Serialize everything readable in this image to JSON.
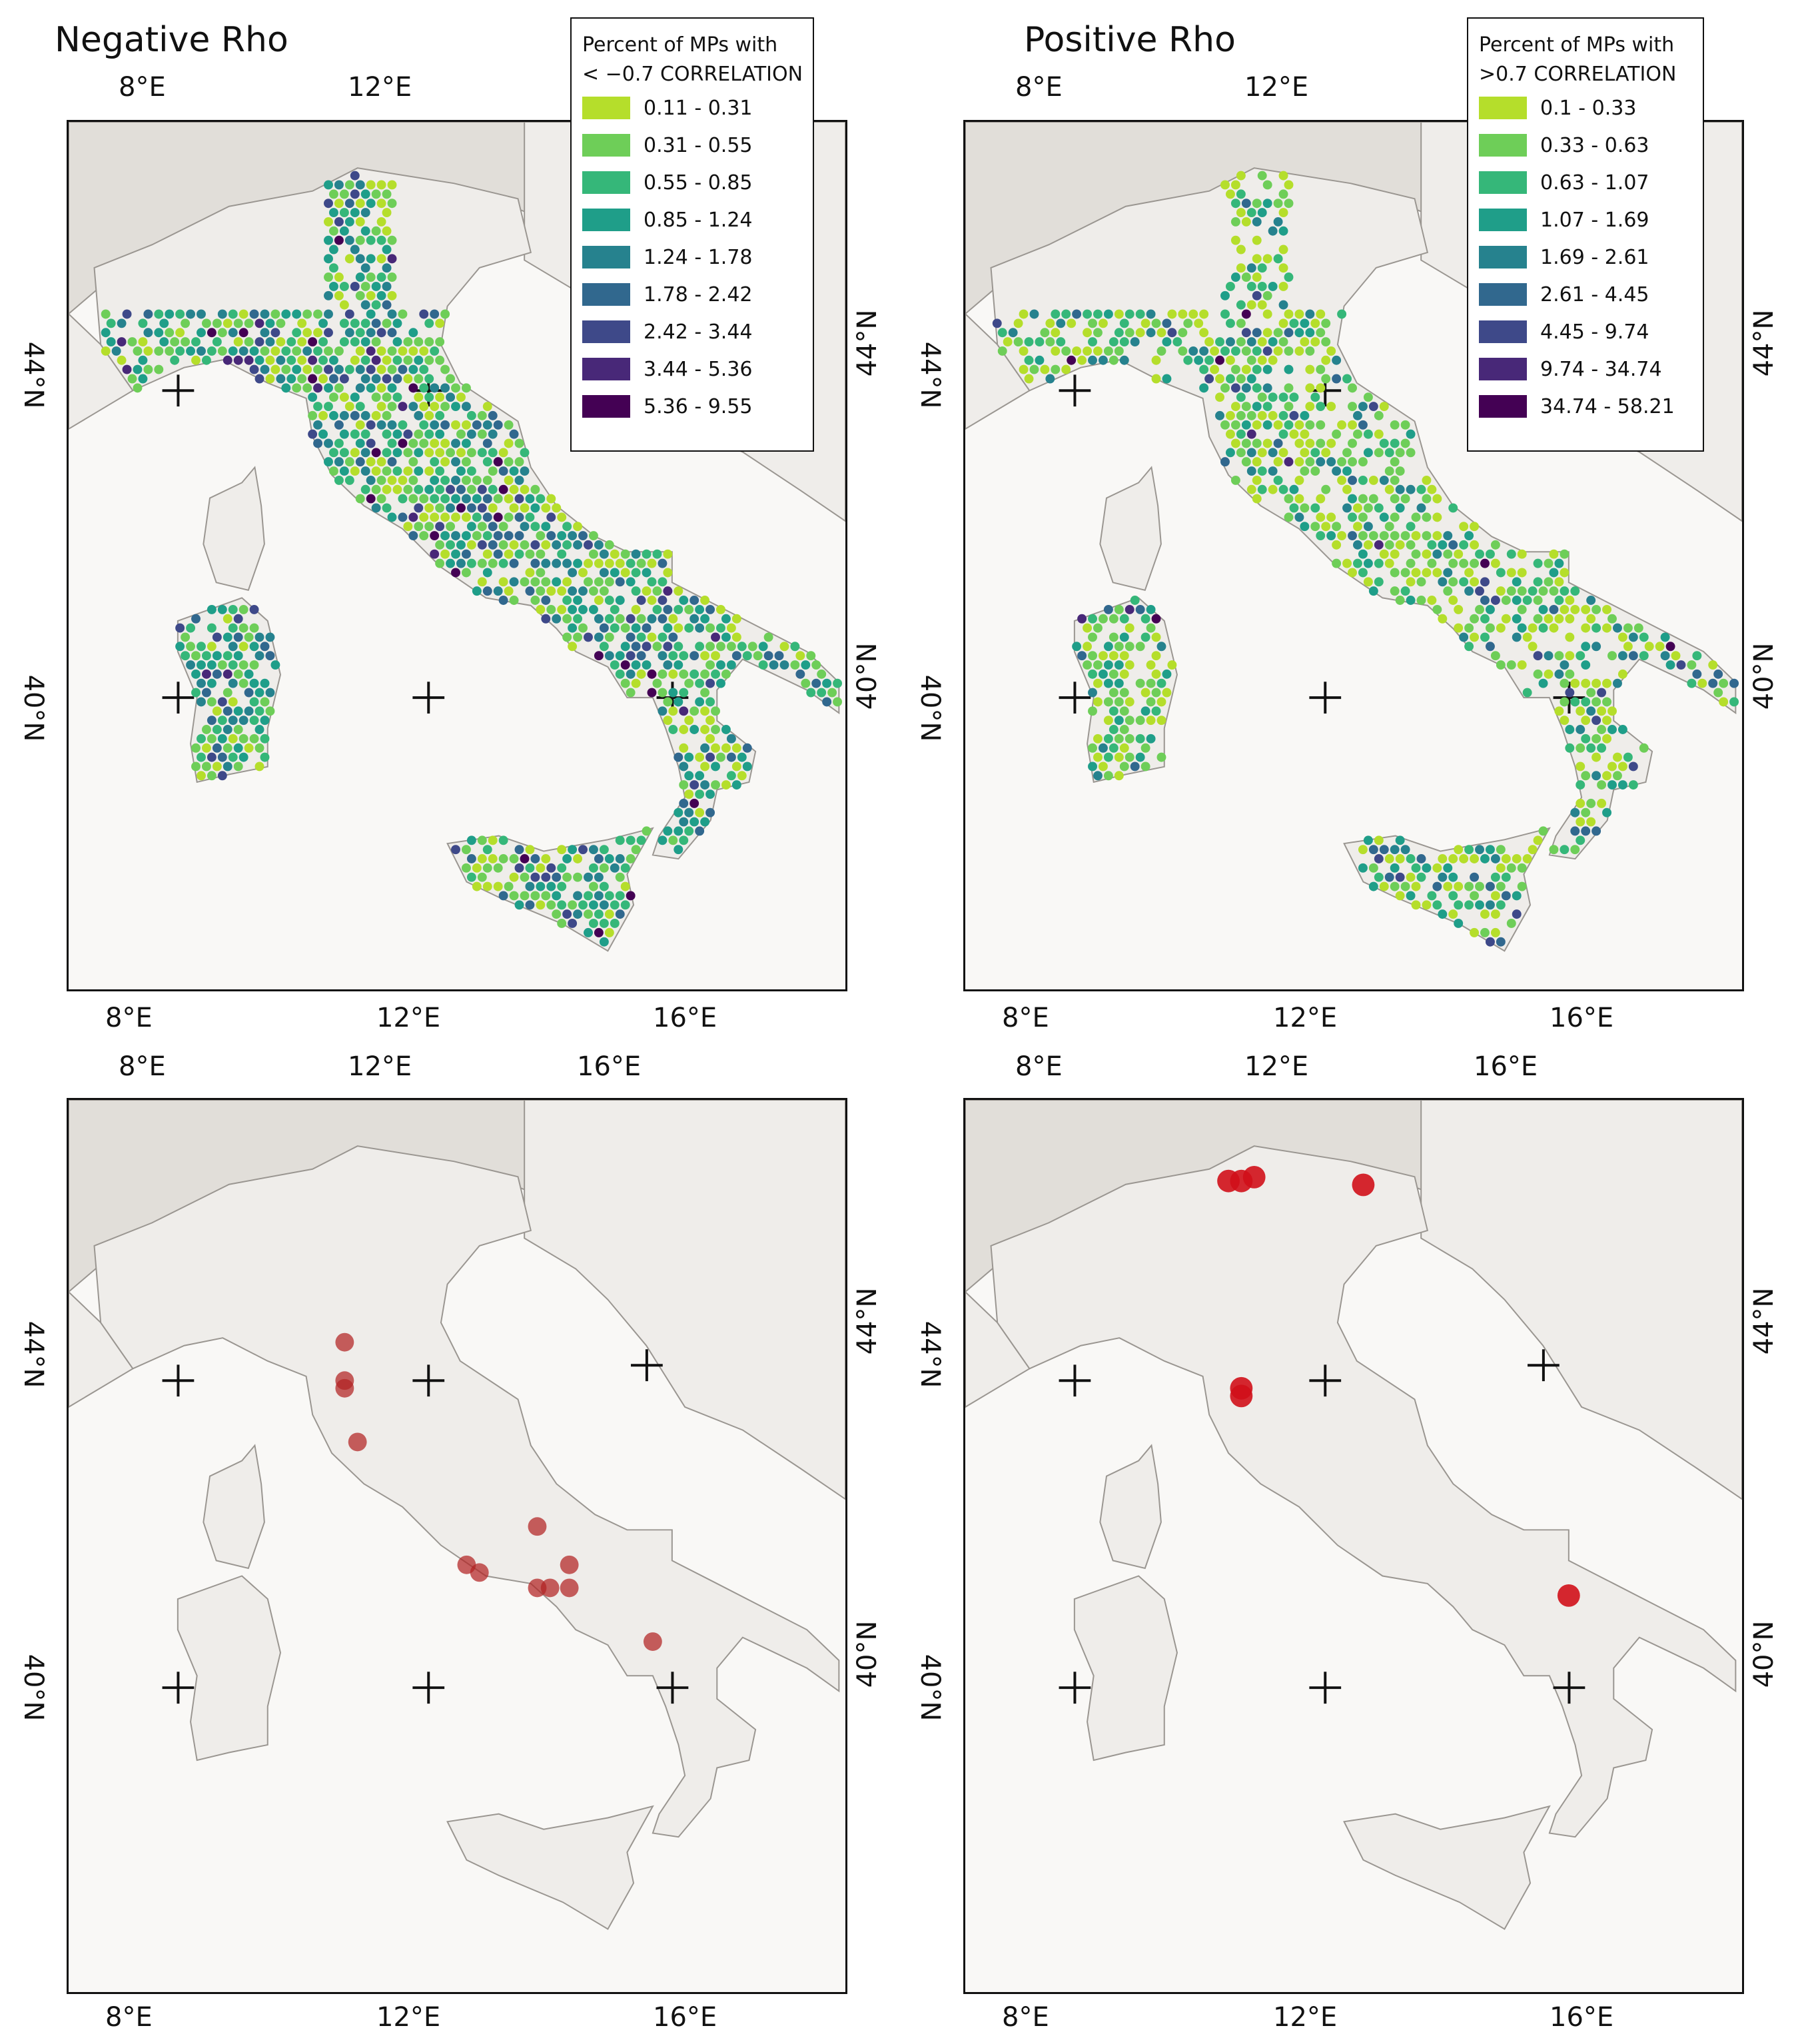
{
  "titles": {
    "negative": "Negative Rho",
    "positive": "Positive Rho"
  },
  "top_ticks": [
    "8°E",
    "12°E",
    "16°E"
  ],
  "bottom_ticks": [
    "8°E",
    "12°E",
    "16°E"
  ],
  "lat_ticks": [
    "44°N",
    "40°N"
  ],
  "legend_negative": {
    "heading1": "Percent of MPs with",
    "heading2": "< −0.7 CORRELATION",
    "classes": [
      {
        "label": "0.11 - 0.31",
        "color": "#b5de2b"
      },
      {
        "label": "0.31 - 0.55",
        "color": "#6ece58"
      },
      {
        "label": "0.55 - 0.85",
        "color": "#35b779"
      },
      {
        "label": "0.85 - 1.24",
        "color": "#1f9e89"
      },
      {
        "label": "1.24 - 1.78",
        "color": "#26828e"
      },
      {
        "label": "1.78 - 2.42",
        "color": "#31688e"
      },
      {
        "label": "2.42 - 3.44",
        "color": "#3e4989"
      },
      {
        "label": "3.44 - 5.36",
        "color": "#482878"
      },
      {
        "label": "5.36 - 9.55",
        "color": "#440154"
      }
    ]
  },
  "legend_positive": {
    "heading1": "Percent of MPs with",
    "heading2": ">0.7 CORRELATION",
    "classes": [
      {
        "label": "0.1 - 0.33",
        "color": "#b5de2b"
      },
      {
        "label": "0.33 - 0.63",
        "color": "#6ece58"
      },
      {
        "label": "0.63 - 1.07",
        "color": "#35b779"
      },
      {
        "label": "1.07 - 1.69",
        "color": "#1f9e89"
      },
      {
        "label": "1.69 - 2.61",
        "color": "#26828e"
      },
      {
        "label": "2.61 - 4.45",
        "color": "#31688e"
      },
      {
        "label": "4.45 - 9.74",
        "color": "#3e4989"
      },
      {
        "label": "9.74 - 34.74",
        "color": "#482878"
      },
      {
        "label": "34.74 - 58.21",
        "color": "#440154"
      }
    ]
  },
  "colors": {
    "sea": "#f9f8f6",
    "land": "#efedea",
    "coast": "#9a9691",
    "point_neg": "#b22222",
    "point_pos": "#d0101a"
  },
  "points_negative": [
    {
      "lon": 10.8,
      "lat": 44.5
    },
    {
      "lon": 10.8,
      "lat": 44.0
    },
    {
      "lon": 10.8,
      "lat": 43.9
    },
    {
      "lon": 11.0,
      "lat": 43.2
    },
    {
      "lon": 12.7,
      "lat": 41.6
    },
    {
      "lon": 12.9,
      "lat": 41.5
    },
    {
      "lon": 13.8,
      "lat": 42.1
    },
    {
      "lon": 14.3,
      "lat": 41.6
    },
    {
      "lon": 14.3,
      "lat": 41.3
    },
    {
      "lon": 13.8,
      "lat": 41.3
    },
    {
      "lon": 14.0,
      "lat": 41.3
    },
    {
      "lon": 15.6,
      "lat": 40.6
    }
  ],
  "points_positive": [
    {
      "lon": 10.6,
      "lat": 46.6
    },
    {
      "lon": 10.8,
      "lat": 46.6
    },
    {
      "lon": 11.0,
      "lat": 46.65
    },
    {
      "lon": 12.7,
      "lat": 46.55
    },
    {
      "lon": 10.8,
      "lat": 43.8
    },
    {
      "lon": 10.8,
      "lat": 43.9
    },
    {
      "lon": 15.9,
      "lat": 41.2
    }
  ]
}
